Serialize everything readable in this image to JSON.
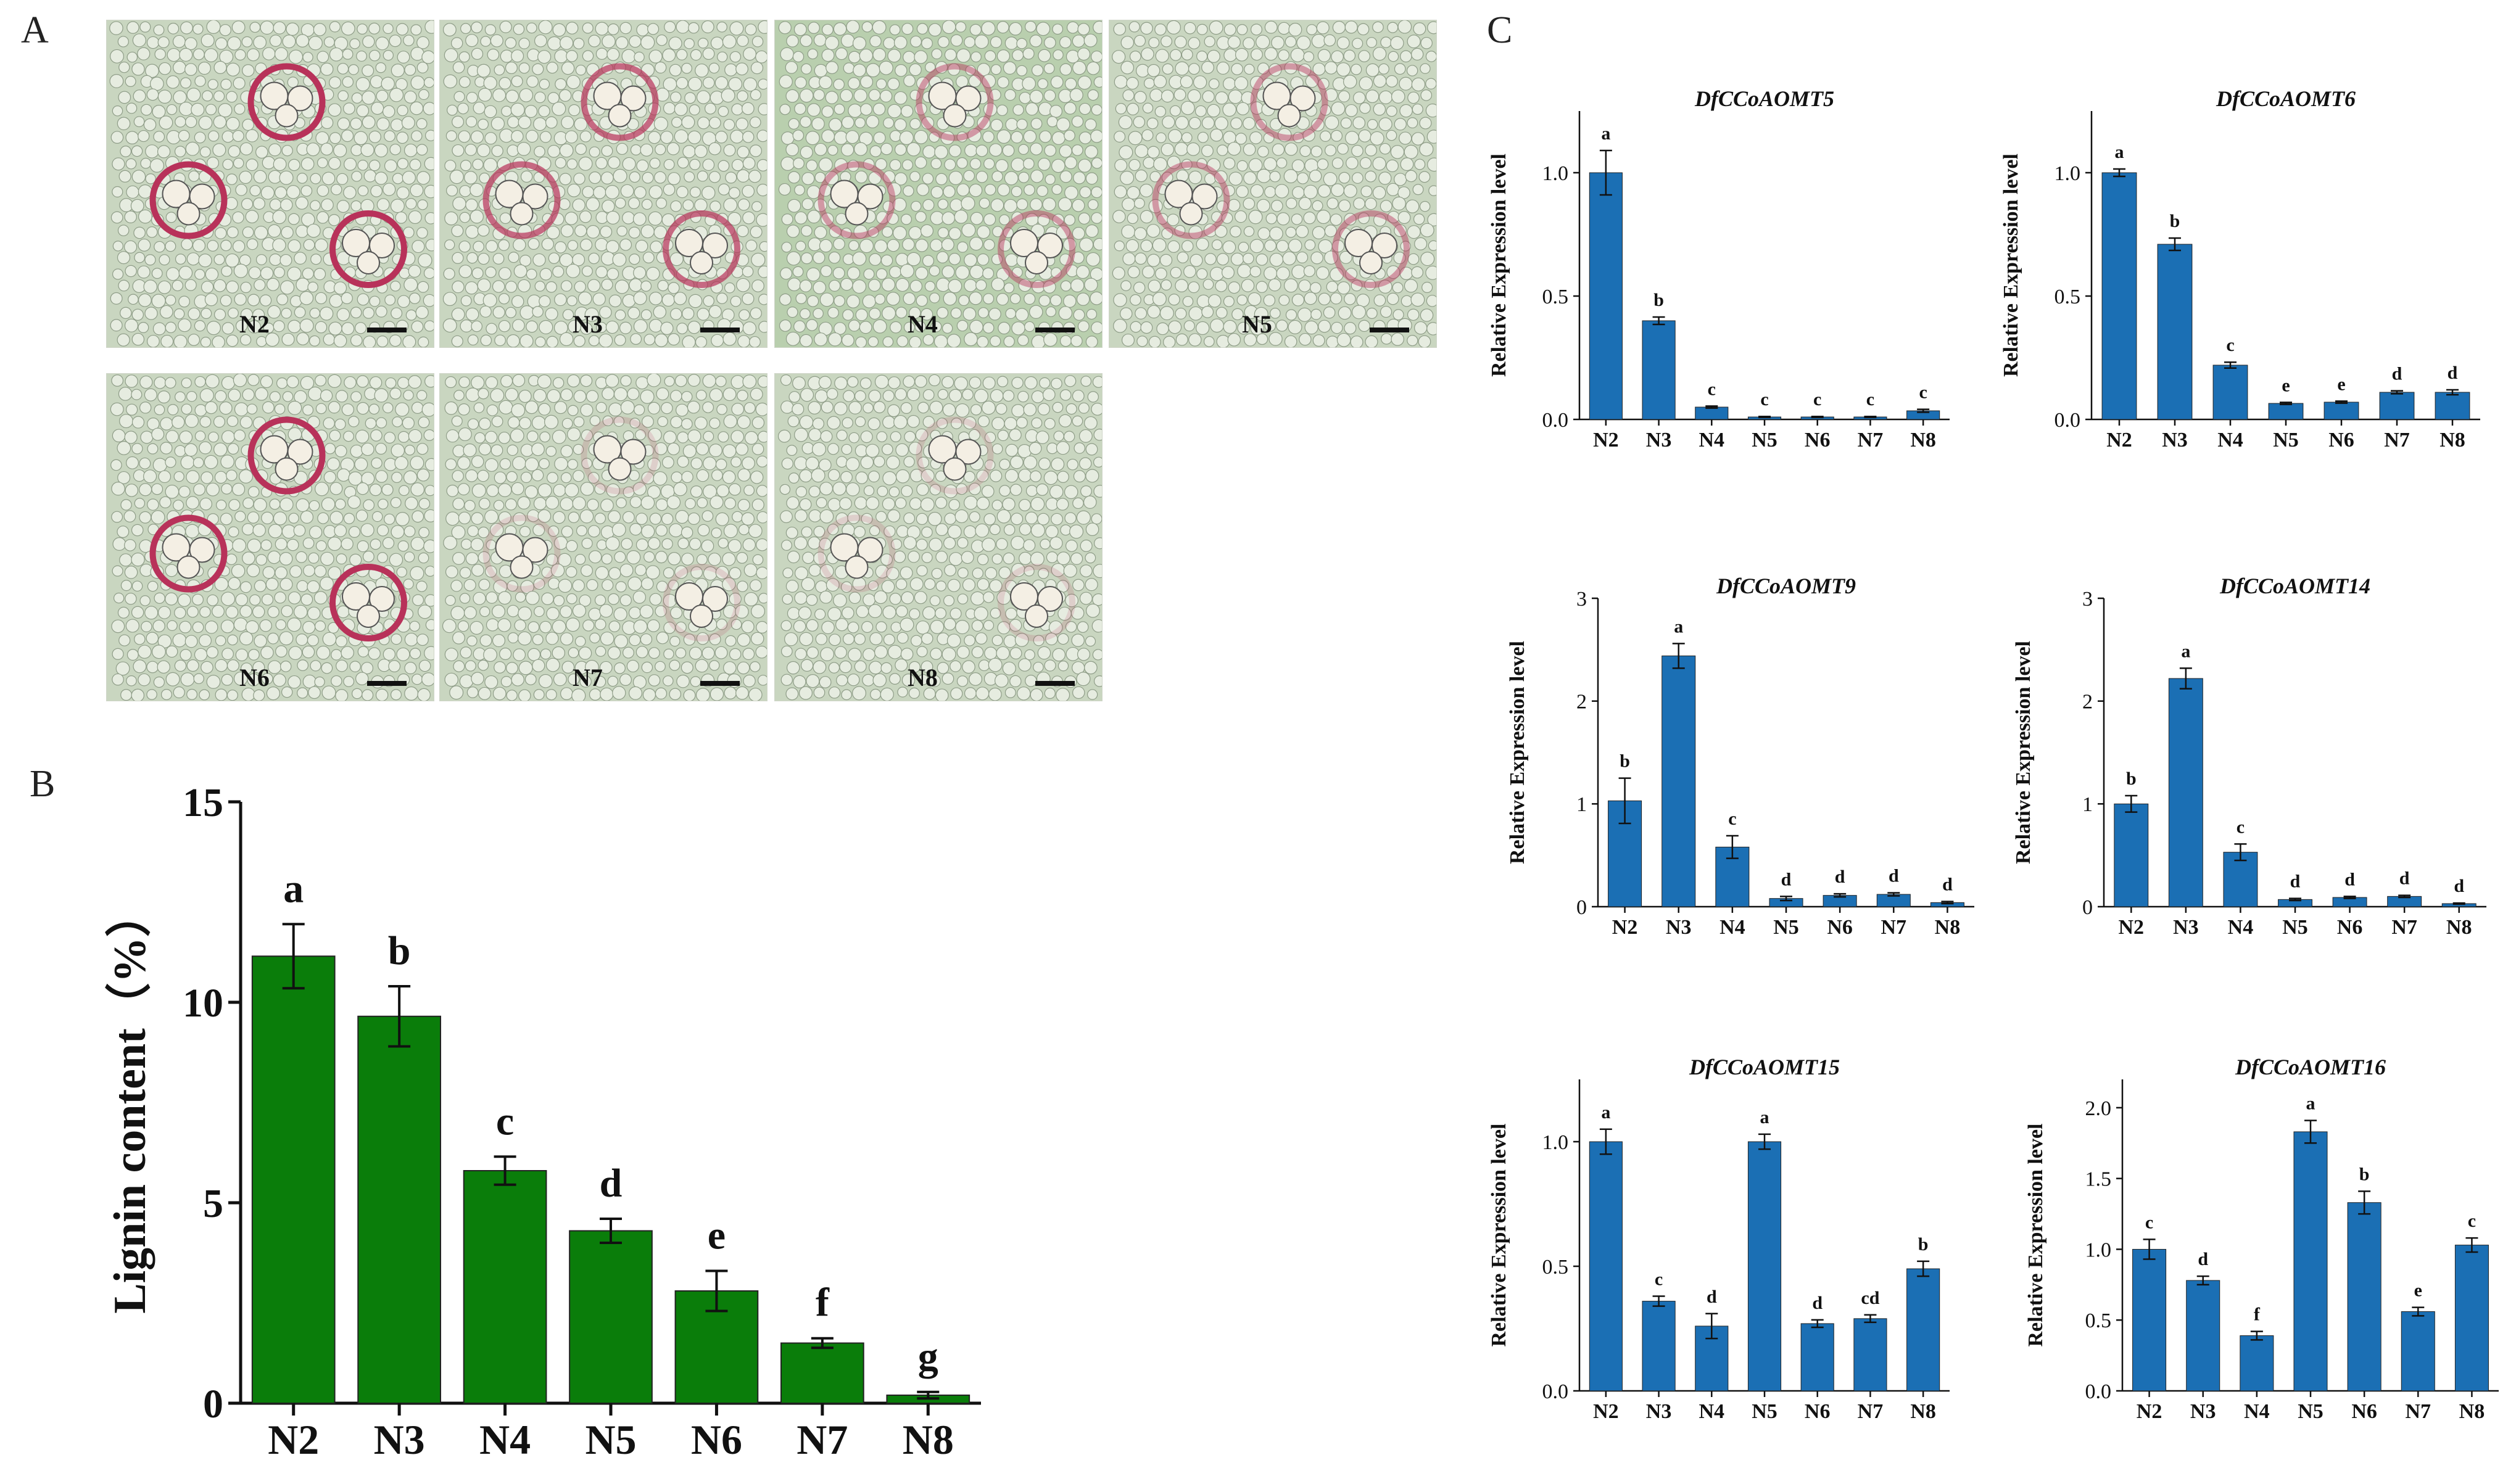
{
  "panels": {
    "a": "A",
    "b": "B",
    "c": "C"
  },
  "micrographs": [
    {
      "label": "N2",
      "stain": "strong"
    },
    {
      "label": "N3",
      "stain": "medium"
    },
    {
      "label": "N4",
      "stain": "weak"
    },
    {
      "label": "N5",
      "stain": "weak"
    },
    {
      "label": "N6",
      "stain": "strong"
    },
    {
      "label": "N7",
      "stain": "faint"
    },
    {
      "label": "N8",
      "stain": "faint"
    }
  ],
  "colors": {
    "lignin_bar": "#0a7d0a",
    "expression_bar": "#1b6fb4",
    "stain": "#b8325a",
    "tissue": "#c9d6c0"
  },
  "chart_data": [
    {
      "id": "lignin",
      "type": "bar",
      "title": "",
      "ylabel": "Lignin content（%）",
      "categories": [
        "N2",
        "N3",
        "N4",
        "N5",
        "N6",
        "N7",
        "N8"
      ],
      "values": [
        11.15,
        9.65,
        5.8,
        4.3,
        2.8,
        1.5,
        0.2
      ],
      "errors": [
        0.8,
        0.75,
        0.35,
        0.3,
        0.5,
        0.12,
        0.08
      ],
      "letters": [
        "a",
        "b",
        "c",
        "d",
        "e",
        "f",
        "g"
      ],
      "ylim": [
        0,
        15
      ],
      "yticks": [
        "0",
        "5",
        "10",
        "15"
      ],
      "ytick_values": [
        0,
        5,
        10,
        15
      ]
    },
    {
      "id": "ccoaomt5",
      "type": "bar",
      "title": "DfCCoAOMT5",
      "ylabel": "Relative Expression level",
      "categories": [
        "N2",
        "N3",
        "N4",
        "N5",
        "N6",
        "N7",
        "N8"
      ],
      "values": [
        1.0,
        0.4,
        0.05,
        0.01,
        0.01,
        0.01,
        0.035
      ],
      "errors": [
        0.09,
        0.015,
        0.004,
        0.002,
        0.002,
        0.002,
        0.006
      ],
      "letters": [
        "a",
        "b",
        "c",
        "c",
        "c",
        "c",
        "c"
      ],
      "ylim": [
        0,
        1.25
      ],
      "yticks": [
        "0.0",
        "0.5",
        "1.0"
      ],
      "ytick_values": [
        0,
        0.5,
        1.0
      ]
    },
    {
      "id": "ccoaomt6",
      "type": "bar",
      "title": "DfCCoAOMT6",
      "ylabel": "Relative Expression level",
      "categories": [
        "N2",
        "N3",
        "N4",
        "N5",
        "N6",
        "N7",
        "N8"
      ],
      "values": [
        1.0,
        0.71,
        0.22,
        0.065,
        0.07,
        0.11,
        0.11
      ],
      "errors": [
        0.015,
        0.025,
        0.012,
        0.004,
        0.004,
        0.006,
        0.01
      ],
      "letters": [
        "a",
        "b",
        "c",
        "e",
        "e",
        "d",
        "d"
      ],
      "ylim": [
        0,
        1.25
      ],
      "yticks": [
        "0.0",
        "0.5",
        "1.0"
      ],
      "ytick_values": [
        0,
        0.5,
        1.0
      ]
    },
    {
      "id": "ccoaomt9",
      "type": "bar",
      "title": "DfCCoAOMT9",
      "ylabel": "Relative Expression level",
      "categories": [
        "N2",
        "N3",
        "N4",
        "N5",
        "N6",
        "N7",
        "N8"
      ],
      "values": [
        1.03,
        2.44,
        0.58,
        0.08,
        0.11,
        0.12,
        0.04
      ],
      "errors": [
        0.22,
        0.12,
        0.11,
        0.02,
        0.015,
        0.015,
        0.01
      ],
      "letters": [
        "b",
        "a",
        "c",
        "d",
        "d",
        "d",
        "d"
      ],
      "ylim": [
        0,
        3
      ],
      "yticks": [
        "0",
        "1",
        "2",
        "3"
      ],
      "ytick_values": [
        0,
        1,
        2,
        3
      ]
    },
    {
      "id": "ccoaomt14",
      "type": "bar",
      "title": "DfCCoAOMT14",
      "ylabel": "Relative Expression level",
      "categories": [
        "N2",
        "N3",
        "N4",
        "N5",
        "N6",
        "N7",
        "N8"
      ],
      "values": [
        1.0,
        2.22,
        0.53,
        0.07,
        0.09,
        0.1,
        0.03
      ],
      "errors": [
        0.08,
        0.1,
        0.08,
        0.01,
        0.01,
        0.01,
        0.005
      ],
      "letters": [
        "b",
        "a",
        "c",
        "d",
        "d",
        "d",
        "d"
      ],
      "ylim": [
        0,
        3
      ],
      "yticks": [
        "0",
        "1",
        "2",
        "3"
      ],
      "ytick_values": [
        0,
        1,
        2,
        3
      ]
    },
    {
      "id": "ccoaomt15",
      "type": "bar",
      "title": "DfCCoAOMT15",
      "ylabel": "Relative Expression level",
      "categories": [
        "N2",
        "N3",
        "N4",
        "N5",
        "N6",
        "N7",
        "N8"
      ],
      "values": [
        1.0,
        0.36,
        0.26,
        1.0,
        0.27,
        0.29,
        0.49
      ],
      "errors": [
        0.05,
        0.02,
        0.05,
        0.03,
        0.015,
        0.015,
        0.03
      ],
      "letters": [
        "a",
        "c",
        "d",
        "a",
        "d",
        "cd",
        "b"
      ],
      "ylim": [
        0,
        1.25
      ],
      "yticks": [
        "0.0",
        "0.5",
        "1.0"
      ],
      "ytick_values": [
        0,
        0.5,
        1.0
      ]
    },
    {
      "id": "ccoaomt16",
      "type": "bar",
      "title": "DfCCoAOMT16",
      "ylabel": "Relative Expression level",
      "categories": [
        "N2",
        "N3",
        "N4",
        "N5",
        "N6",
        "N7",
        "N8"
      ],
      "values": [
        1.0,
        0.78,
        0.39,
        1.83,
        1.33,
        0.56,
        1.03
      ],
      "errors": [
        0.07,
        0.03,
        0.03,
        0.08,
        0.08,
        0.03,
        0.05
      ],
      "letters": [
        "c",
        "d",
        "f",
        "a",
        "b",
        "e",
        "c"
      ],
      "ylim": [
        0,
        2.2
      ],
      "yticks": [
        "0.0",
        "0.5",
        "1.0",
        "1.5",
        "2.0"
      ],
      "ytick_values": [
        0,
        0.5,
        1.0,
        1.5,
        2.0
      ]
    }
  ]
}
